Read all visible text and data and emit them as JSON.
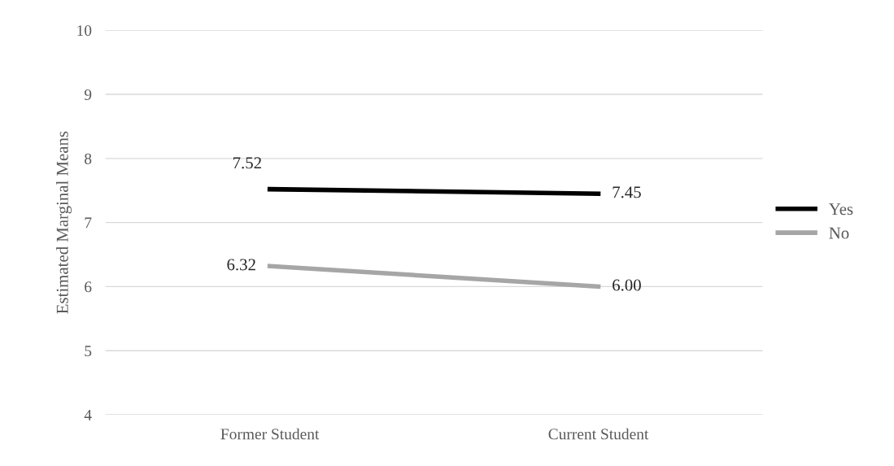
{
  "chart_data": {
    "type": "line",
    "ylabel": "Estimated Marginal Means",
    "categories": [
      "Former Student",
      "Current Student"
    ],
    "series": [
      {
        "name": "Yes",
        "color": "#000000",
        "values": [
          7.52,
          7.45
        ],
        "value_labels": [
          "7.52",
          "7.45"
        ]
      },
      {
        "name": "No",
        "color": "#a6a6a6",
        "values": [
          6.32,
          6.0
        ],
        "value_labels": [
          "6.32",
          "6.00"
        ]
      }
    ],
    "ylim": [
      4,
      10
    ],
    "yticks": [
      4,
      5,
      6,
      7,
      8,
      9,
      10
    ],
    "grid": "y",
    "legend": "right",
    "marker": "none",
    "line_style": "solid"
  }
}
